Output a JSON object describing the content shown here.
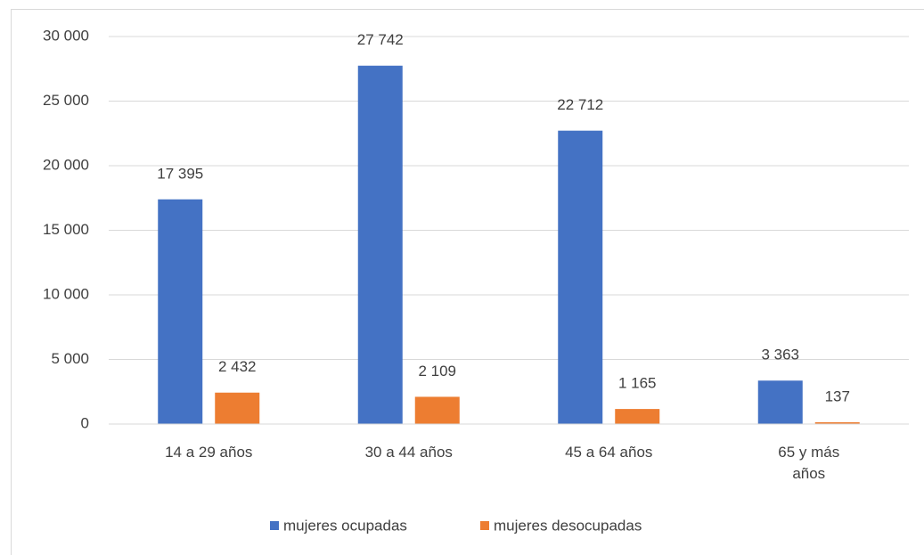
{
  "chart_data": {
    "type": "bar",
    "categories": [
      "14 a 29 años",
      "30 a 44 años",
      "45 a 64 años",
      "65 y más años"
    ],
    "series": [
      {
        "name": "mujeres ocupadas",
        "color": "#4472c4",
        "values": [
          17395,
          27742,
          22712,
          3363
        ],
        "value_labels": [
          "17 395",
          "27 742",
          "22 712",
          "3 363"
        ]
      },
      {
        "name": "mujeres desocupadas",
        "color": "#ed7d31",
        "values": [
          2432,
          2109,
          1165,
          137
        ],
        "value_labels": [
          "2 432",
          "2 109",
          "1 165",
          "137"
        ]
      }
    ],
    "ylim": [
      0,
      30000
    ],
    "yticks": [
      0,
      {
        "value": 5000,
        "label": "5 000"
      },
      {
        "value": 10000,
        "label": "10 000"
      },
      {
        "value": 15000,
        "label": "15 000"
      },
      {
        "value": 20000,
        "label": "20 000"
      },
      {
        "value": 25000,
        "label": "25 000"
      },
      {
        "value": 30000,
        "label": "30 000"
      }
    ],
    "grid": true,
    "legend": "bottom"
  }
}
